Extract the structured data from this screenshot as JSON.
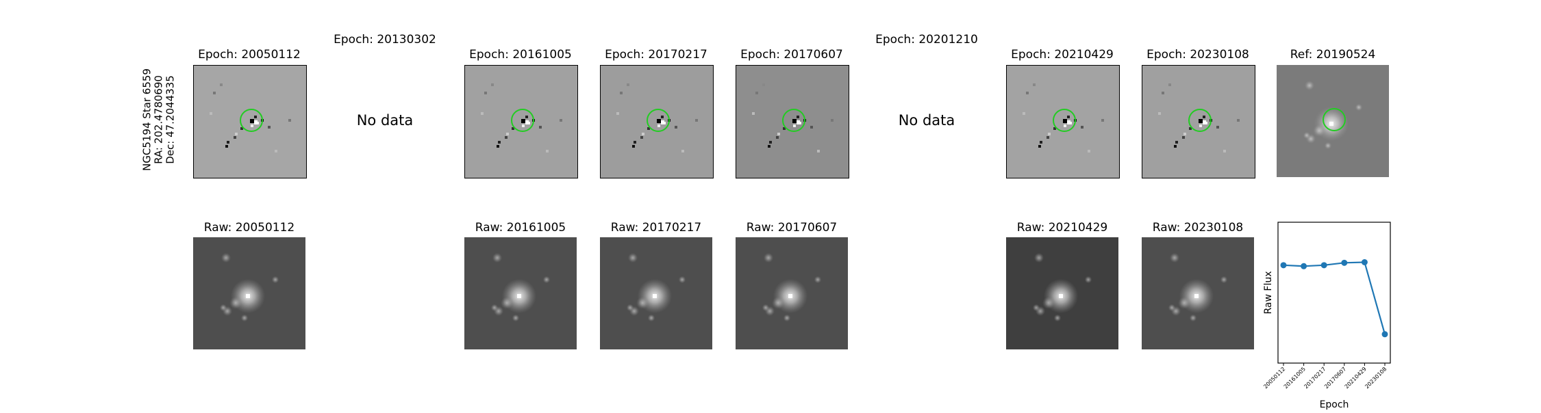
{
  "target": {
    "name": "NGC5194 Star 6559",
    "ra": "RA: 202.4780690",
    "dec": "Dec: 47.2044335"
  },
  "diff_row": [
    {
      "title": "Epoch: 20050112",
      "has_data": true,
      "bg": "#a6a6a6"
    },
    {
      "title": "Epoch: 20130302",
      "has_data": false,
      "no_data_text": "No data"
    },
    {
      "title": "Epoch: 20161005",
      "has_data": true,
      "bg": "#a1a1a1"
    },
    {
      "title": "Epoch: 20170217",
      "has_data": true,
      "bg": "#9d9d9d"
    },
    {
      "title": "Epoch: 20170607",
      "has_data": true,
      "bg": "#8e8e8e"
    },
    {
      "title": "Epoch: 20201210",
      "has_data": false,
      "no_data_text": "No data"
    },
    {
      "title": "Epoch: 20210429",
      "has_data": true,
      "bg": "#a3a3a3"
    },
    {
      "title": "Epoch: 20230108",
      "has_data": true,
      "bg": "#a0a0a0"
    },
    {
      "title": "Ref: 20190524",
      "has_data": true,
      "bg": "#7b7b7b"
    }
  ],
  "raw_row": [
    {
      "title": "Raw: 20050112",
      "has_data": true,
      "bg": "#4e4e4e"
    },
    {
      "title": "",
      "has_data": false
    },
    {
      "title": "Raw: 20161005",
      "has_data": true,
      "bg": "#4e4e4e"
    },
    {
      "title": "Raw: 20170217",
      "has_data": true,
      "bg": "#4e4e4e"
    },
    {
      "title": "Raw: 20170607",
      "has_data": true,
      "bg": "#4e4e4e"
    },
    {
      "title": "",
      "has_data": false
    },
    {
      "title": "Raw: 20210429",
      "has_data": true,
      "bg": "#3f3f3f"
    },
    {
      "title": "Raw: 20230108",
      "has_data": true,
      "bg": "#4e4e4e"
    }
  ],
  "circle_color": "#22cc22",
  "chart_data": {
    "type": "line",
    "categories": [
      "20050112",
      "20161005",
      "20170217",
      "20170607",
      "20210429",
      "20230108"
    ],
    "values": [
      0.695,
      0.688,
      0.695,
      0.712,
      0.716,
      0.205
    ],
    "ylim": [
      0,
      1
    ],
    "xlabel": "Epoch",
    "ylabel": "Raw Flux",
    "title": "",
    "grid": false,
    "series_color": "#1f77b4"
  }
}
